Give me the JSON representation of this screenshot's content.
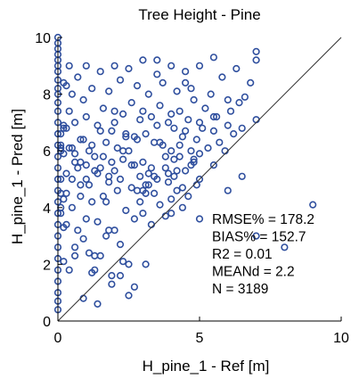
{
  "chart_data": {
    "type": "scatter",
    "title": "Tree Height - Pine",
    "xlabel": "H_pine_1 - Ref [m]",
    "ylabel": "H_pine_1 - Pred [m]",
    "xlim": [
      0,
      10
    ],
    "ylim": [
      0,
      10
    ],
    "x_ticks": [
      "0",
      "5",
      "10"
    ],
    "y_ticks": [
      "0",
      "2",
      "4",
      "6",
      "8",
      "10"
    ],
    "grid": false,
    "reference_line": "1:1",
    "marker": "open-circle",
    "marker_color": "#2f4f9e",
    "line_color": "#333333",
    "annotation_lines": [
      "RMSE% = 178.2",
      "BIAS% = 152.7",
      "R2 = 0.01",
      "MEANd = 2.2",
      "N = 3189"
    ],
    "stats": {
      "RMSE%": 178.2,
      "BIAS%": 152.7,
      "R2": 0.01,
      "MEANd": 2.2,
      "N": 3189
    },
    "points_x": [
      0,
      0,
      0,
      0,
      0,
      0,
      0,
      0,
      0,
      0,
      0,
      0,
      0,
      0,
      0,
      0,
      0,
      0,
      0,
      0,
      0,
      0,
      0,
      0,
      0,
      0,
      0,
      0,
      0,
      0,
      0.2,
      0.3,
      0.3,
      0.2,
      0.4,
      0.4,
      0.3,
      0.2,
      0.5,
      0.5,
      0.5,
      0.4,
      0.6,
      0.6,
      0.7,
      0.7,
      0.8,
      0.8,
      0.9,
      0.9,
      1.0,
      1.0,
      1.0,
      1.0,
      1.1,
      1.1,
      1.2,
      1.2,
      1.3,
      1.3,
      1.4,
      1.4,
      1.5,
      1.5,
      1.5,
      1.6,
      1.6,
      1.7,
      1.7,
      1.8,
      1.8,
      1.9,
      1.9,
      2.0,
      2.0,
      2.0,
      2.0,
      2.1,
      2.1,
      2.2,
      2.2,
      2.3,
      2.3,
      2.4,
      2.4,
      2.5,
      2.5,
      2.5,
      2.6,
      2.6,
      2.7,
      2.7,
      2.8,
      2.8,
      2.9,
      2.9,
      3.0,
      3.0,
      3.0,
      3.0,
      3.1,
      3.1,
      3.2,
      3.2,
      3.3,
      3.3,
      3.4,
      3.4,
      3.5,
      3.5,
      3.5,
      3.6,
      3.6,
      3.7,
      3.7,
      3.8,
      3.8,
      3.9,
      3.9,
      4.0,
      4.0,
      4.0,
      4.0,
      4.1,
      4.1,
      4.2,
      4.2,
      4.3,
      4.3,
      4.4,
      4.4,
      4.5,
      4.5,
      4.5,
      4.6,
      4.6,
      4.7,
      4.7,
      4.8,
      4.8,
      4.9,
      4.9,
      5.0,
      5.0,
      5.0,
      5.0,
      5.1,
      5.2,
      5.3,
      5.4,
      5.5,
      5.5,
      5.6,
      5.7,
      5.8,
      5.9,
      6.0,
      6.0,
      6.1,
      6.2,
      6.3,
      6.4,
      6.5,
      6.6,
      6.8,
      7.0,
      7.0,
      0.3,
      0.5,
      0.8,
      1.1,
      1.4,
      1.9,
      2.3,
      2.8,
      3.3,
      3.8,
      4.3,
      4.7,
      0.6,
      1.0,
      1.6,
      2.2,
      2.7,
      3.1,
      3.6,
      4.1,
      0.4,
      0.9,
      1.3,
      1.8,
      2.4,
      3.4,
      4.4,
      1.5,
      2.6,
      3.9,
      0.8,
      1.2,
      0.2,
      0.7,
      1.7,
      2.9,
      3.2,
      4.2,
      4.8,
      0.1,
      0.1,
      0.1,
      0.1,
      0.1,
      0.1,
      0.1,
      0.1,
      0.2,
      0.2,
      0.2,
      5.0,
      5.5,
      6.5,
      7.0,
      8.0,
      9.0,
      3.0,
      4.0,
      6.0,
      7.0,
      2.0,
      3.5,
      4.5,
      5.5,
      0.3,
      0.6,
      1.3,
      1.8,
      2.2,
      0.6,
      0.9,
      1.2,
      1.4,
      2.5,
      1.9,
      2.3,
      2.7,
      3.1
    ],
    "points_y": [
      10.0,
      9.8,
      9.6,
      9.4,
      9.2,
      9.0,
      8.8,
      8.5,
      8.2,
      8.0,
      7.7,
      7.4,
      7.0,
      6.6,
      6.2,
      5.8,
      5.4,
      5.0,
      4.6,
      4.2,
      3.8,
      3.4,
      3.0,
      2.6,
      2.2,
      1.8,
      1.4,
      1.0,
      0.7,
      0.4,
      8.4,
      6.8,
      5.2,
      3.3,
      9.0,
      7.4,
      4.5,
      2.1,
      8.0,
      6.1,
      4.0,
      1.8,
      7.0,
      5.6,
      8.6,
      3.2,
      6.4,
      4.8,
      7.8,
      2.9,
      9.0,
      7.2,
      5.0,
      3.6,
      6.0,
      2.4,
      8.2,
      4.2,
      5.8,
      1.8,
      6.9,
      3.5,
      8.8,
      5.4,
      2.3,
      7.5,
      4.4,
      6.3,
      3.0,
      8.1,
      5.1,
      6.7,
      1.6,
      9.0,
      7.0,
      5.3,
      3.2,
      6.1,
      4.6,
      8.5,
      2.7,
      7.3,
      5.7,
      6.5,
      3.9,
      8.9,
      6.0,
      2.0,
      7.7,
      4.7,
      5.5,
      3.6,
      8.3,
      6.4,
      7.1,
      4.2,
      9.2,
      7.4,
      5.6,
      3.8,
      6.6,
      4.8,
      8.0,
      5.2,
      7.2,
      3.4,
      6.3,
      4.5,
      8.7,
      6.9,
      5.0,
      7.6,
      4.1,
      6.2,
      8.4,
      5.4,
      3.7,
      7.0,
      4.9,
      9.0,
      7.3,
      6.0,
      4.3,
      6.8,
      5.1,
      8.1,
      4.6,
      7.4,
      5.8,
      6.5,
      4.0,
      8.8,
      6.7,
      5.3,
      7.1,
      4.4,
      6.0,
      8.2,
      5.6,
      7.8,
      4.8,
      6.4,
      9.0,
      7.0,
      5.9,
      5.0,
      6.8,
      7.5,
      6.1,
      8.0,
      6.7,
      5.5,
      7.2,
      6.3,
      8.6,
      6.0,
      7.8,
      6.9,
      7.4,
      6.6,
      8.9,
      7.7,
      6.8,
      7.9,
      8.4,
      7.1,
      9.5,
      8.3,
      5.0,
      4.4,
      4.8,
      5.2,
      5.6,
      6.0,
      4.6,
      5.4,
      5.8,
      6.2,
      5.5,
      5.9,
      5.5,
      5.8,
      5.0,
      6.5,
      4.5,
      6.3,
      5.7,
      6.1,
      6.4,
      5.3,
      4.9,
      6.6,
      5.1,
      4.7,
      6.7,
      5.5,
      5.2,
      5.6,
      6.2,
      6.8,
      5.4,
      4.2,
      5.1,
      4.8,
      5.3,
      5.7,
      6.0,
      4.5,
      6.1,
      5.0,
      6.2,
      4.0,
      6.6,
      3.8,
      6.9,
      4.3,
      5.9,
      3.6,
      7.2,
      5.1,
      3.0,
      2.6,
      4.1,
      4.6,
      3.8,
      4.6,
      9.2,
      7.4,
      9.2,
      8.4,
      9.3,
      3.4,
      2.6,
      2.3,
      3.2,
      1.6,
      2.3,
      0.8,
      1.7,
      0.6,
      0.9,
      1.3,
      2.1,
      1.2,
      2.0,
      1.5,
      1.8,
      1.9,
      1.2,
      1.5,
      1.0
    ]
  }
}
